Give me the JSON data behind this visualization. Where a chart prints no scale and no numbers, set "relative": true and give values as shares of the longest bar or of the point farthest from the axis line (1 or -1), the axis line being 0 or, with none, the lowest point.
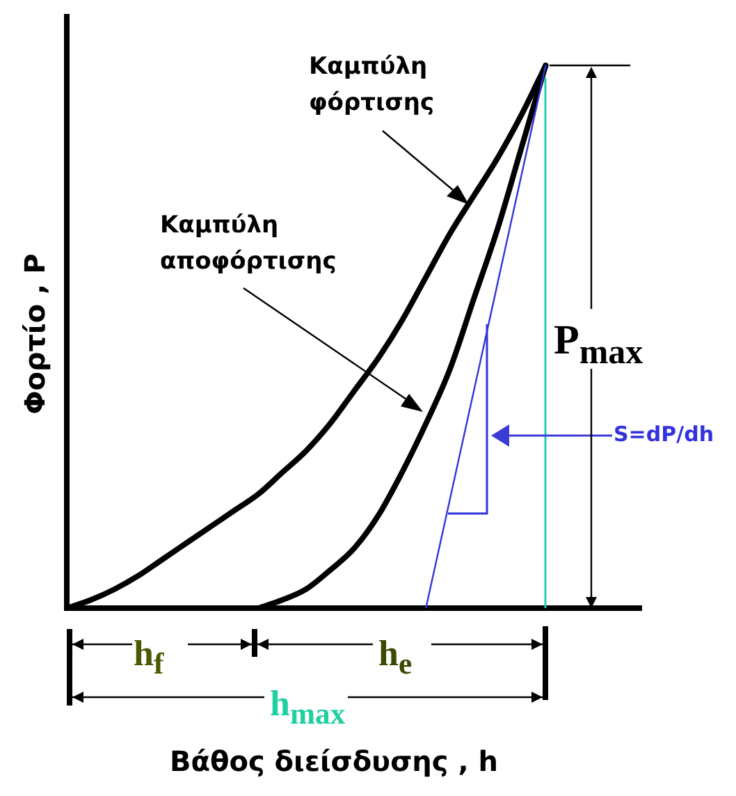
{
  "chart_data": {
    "type": "line",
    "relative": true,
    "xlabel": "Βάθος διείσδυσης , h",
    "ylabel": "Φορτίο , P",
    "categories": [
      null,
      null,
      null,
      null,
      null,
      null,
      null,
      null,
      null,
      null,
      null,
      null,
      null,
      null,
      null,
      null,
      null,
      null,
      null,
      null,
      null,
      null,
      null,
      null,
      null
    ],
    "series": [
      {
        "color": "#000000",
        "values": [
          0,
          0.015,
          0.035,
          0.06,
          0.09,
          0.12,
          0.15,
          0.18,
          0.21,
          0.25,
          0.29,
          0.34,
          0.4,
          0.46,
          0.53,
          0.61,
          0.69,
          0.76,
          0.83,
          0.91,
          1,
          null,
          null,
          null,
          null
        ]
      },
      {
        "color": "#000000",
        "values": [
          null,
          null,
          null,
          null,
          null,
          null,
          null,
          null,
          0,
          0.015,
          0.035,
          0.07,
          0.11,
          0.17,
          0.25,
          0.34,
          0.44,
          0.57,
          0.7,
          0.85,
          1,
          null,
          null,
          null,
          null
        ]
      },
      {
        "color": "#3333dd",
        "values": [
          null,
          null,
          null,
          null,
          null,
          null,
          null,
          null,
          null,
          null,
          null,
          null,
          null,
          null,
          null,
          0,
          0.2,
          0.4,
          0.6,
          0.8,
          1,
          null,
          null,
          null,
          null
        ]
      }
    ],
    "annotations": [
      "Καμπύλη φόρτισης",
      "Καμπύλη αποφόρτισης",
      "P$_{max}$",
      "S=dP/dh",
      "h$_{f}$",
      "h$_{e}$",
      "h$_{max}$"
    ],
    "grid": false,
    "legend": false,
    "marker": "none",
    "line_style": "solid"
  }
}
